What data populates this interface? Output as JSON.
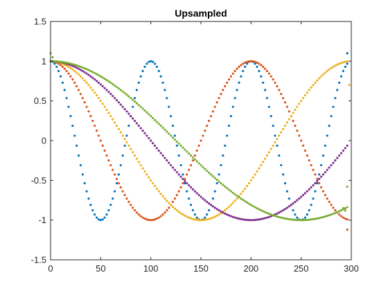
{
  "chart_data": {
    "type": "scatter",
    "title": "Upsampled",
    "xlabel": "",
    "ylabel": "",
    "xlim": [
      0,
      300
    ],
    "ylim": [
      -1.5,
      1.5
    ],
    "xticks": [
      "0",
      "50",
      "100",
      "150",
      "200",
      "250",
      "300"
    ],
    "yticks": [
      "-1.5",
      "-1",
      "-0.5",
      "0",
      "0.5",
      "1",
      "1.5"
    ],
    "xtick_values": [
      0,
      50,
      100,
      150,
      200,
      250,
      300
    ],
    "ytick_values": [
      -1.5,
      -1,
      -0.5,
      0,
      0.5,
      1,
      1.5
    ],
    "grid": false,
    "legend": "none",
    "marker": "dot",
    "series": [
      {
        "color": "#0072BD",
        "x_start": 0,
        "x_end": 296,
        "x_step": 2,
        "period": 100
      },
      {
        "color": "#D95319",
        "x_start": 0,
        "x_end": 296,
        "x_step": 2,
        "period": 200
      },
      {
        "color": "#EDB120",
        "x_start": 0,
        "x_end": 296,
        "x_step": 2,
        "period": 300
      },
      {
        "color": "#7E2F8E",
        "x_start": 0,
        "x_end": 296,
        "x_step": 2,
        "period": 400
      },
      {
        "color": "#77AC30",
        "x_start": 0,
        "x_end": 296,
        "x_step": 2,
        "period": 500
      }
    ],
    "edge_artifacts": [
      {
        "series": 4,
        "x": 0,
        "y": 1.1
      },
      {
        "series": 4,
        "x": 2,
        "y": 1.05
      },
      {
        "series": 4,
        "x": 296,
        "y": -0.58
      },
      {
        "series": 4,
        "x": 294,
        "y": -0.88
      },
      {
        "series": 4,
        "x": 292,
        "y": -0.85
      },
      {
        "series": 2,
        "x": 296,
        "y": 1.1
      },
      {
        "series": 2,
        "x": 298,
        "y": 0.7
      },
      {
        "series": 1,
        "x": 296,
        "y": -1.12
      },
      {
        "series": 0,
        "x": 296,
        "y": 1.1
      }
    ]
  }
}
